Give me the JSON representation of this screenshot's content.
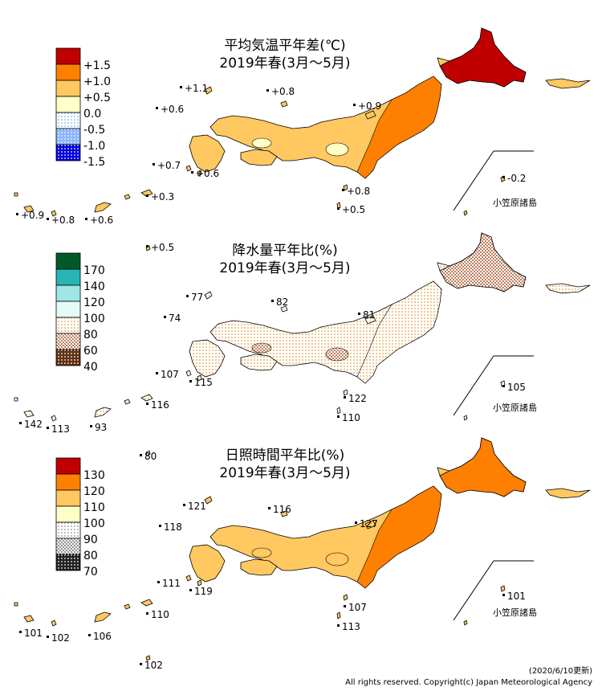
{
  "footer": {
    "updated": "(2020/6/10更新)",
    "copyright": "All rights reserved. Copyright(c) Japan Meteorological Agency"
  },
  "ogasawara_label": "小笠原諸島",
  "panels": [
    {
      "id": "temperature",
      "title": "平均気温平年差(℃)",
      "subtitle": "2019年春(3月～5月)",
      "legend": [
        {
          "label": "+1.5",
          "color": "#c00000",
          "pattern": "solid"
        },
        {
          "label": "+1.0",
          "color": "#ff8000",
          "pattern": "solid"
        },
        {
          "label": "+0.5",
          "color": "#ffc860",
          "pattern": "solid"
        },
        {
          "label": "0.0",
          "color": "#ffffc8",
          "pattern": "solid"
        },
        {
          "label": "-0.5",
          "color": "#c8e0ff",
          "pattern": "dots"
        },
        {
          "label": "-1.0",
          "color": "#6090ff",
          "pattern": "dots"
        },
        {
          "label": "-1.5",
          "color": "#0000e0",
          "pattern": "dots"
        }
      ],
      "stations": [
        "+1.1",
        "+0.8",
        "+0.6",
        "+0.9",
        "+0.7",
        "+0.6",
        "+0.8",
        "+0.5",
        "+0.3",
        "+0.9",
        "+0.8",
        "+0.6",
        "+0.5",
        "-0.2"
      ]
    },
    {
      "id": "precipitation",
      "title": "降水量平年比(%)",
      "subtitle": "2019年春(3月～5月)",
      "legend": [
        {
          "label": "170",
          "color": "#005a28",
          "pattern": "solid"
        },
        {
          "label": "140",
          "color": "#28b4b4",
          "pattern": "solid"
        },
        {
          "label": "120",
          "color": "#a0e6e6",
          "pattern": "solid"
        },
        {
          "label": "100",
          "color": "#e6fafa",
          "pattern": "solid"
        },
        {
          "label": "80",
          "color": "#f0c080",
          "pattern": "dots"
        },
        {
          "label": "60",
          "color": "#c08060",
          "pattern": "checker"
        },
        {
          "label": "40",
          "color": "#603010",
          "pattern": "dots"
        }
      ],
      "stations": [
        "77",
        "82",
        "74",
        "81",
        "107",
        "115",
        "122",
        "110",
        "116",
        "142",
        "113",
        "93",
        "80",
        "105"
      ]
    },
    {
      "id": "sunshine",
      "title": "日照時間平年比(%)",
      "subtitle": "2019年春(3月～5月)",
      "legend": [
        {
          "label": "130",
          "color": "#c00000",
          "pattern": "solid"
        },
        {
          "label": "120",
          "color": "#ff8000",
          "pattern": "solid"
        },
        {
          "label": "110",
          "color": "#ffc860",
          "pattern": "solid"
        },
        {
          "label": "100",
          "color": "#ffffc8",
          "pattern": "solid"
        },
        {
          "label": "90",
          "color": "#d0d0d0",
          "pattern": "dots"
        },
        {
          "label": "80",
          "color": "#909090",
          "pattern": "checker"
        },
        {
          "label": "70",
          "color": "#202020",
          "pattern": "dots"
        }
      ],
      "stations": [
        "121",
        "116",
        "118",
        "127",
        "111",
        "119",
        "107",
        "113",
        "110",
        "101",
        "102",
        "106",
        "102",
        "101"
      ]
    }
  ]
}
